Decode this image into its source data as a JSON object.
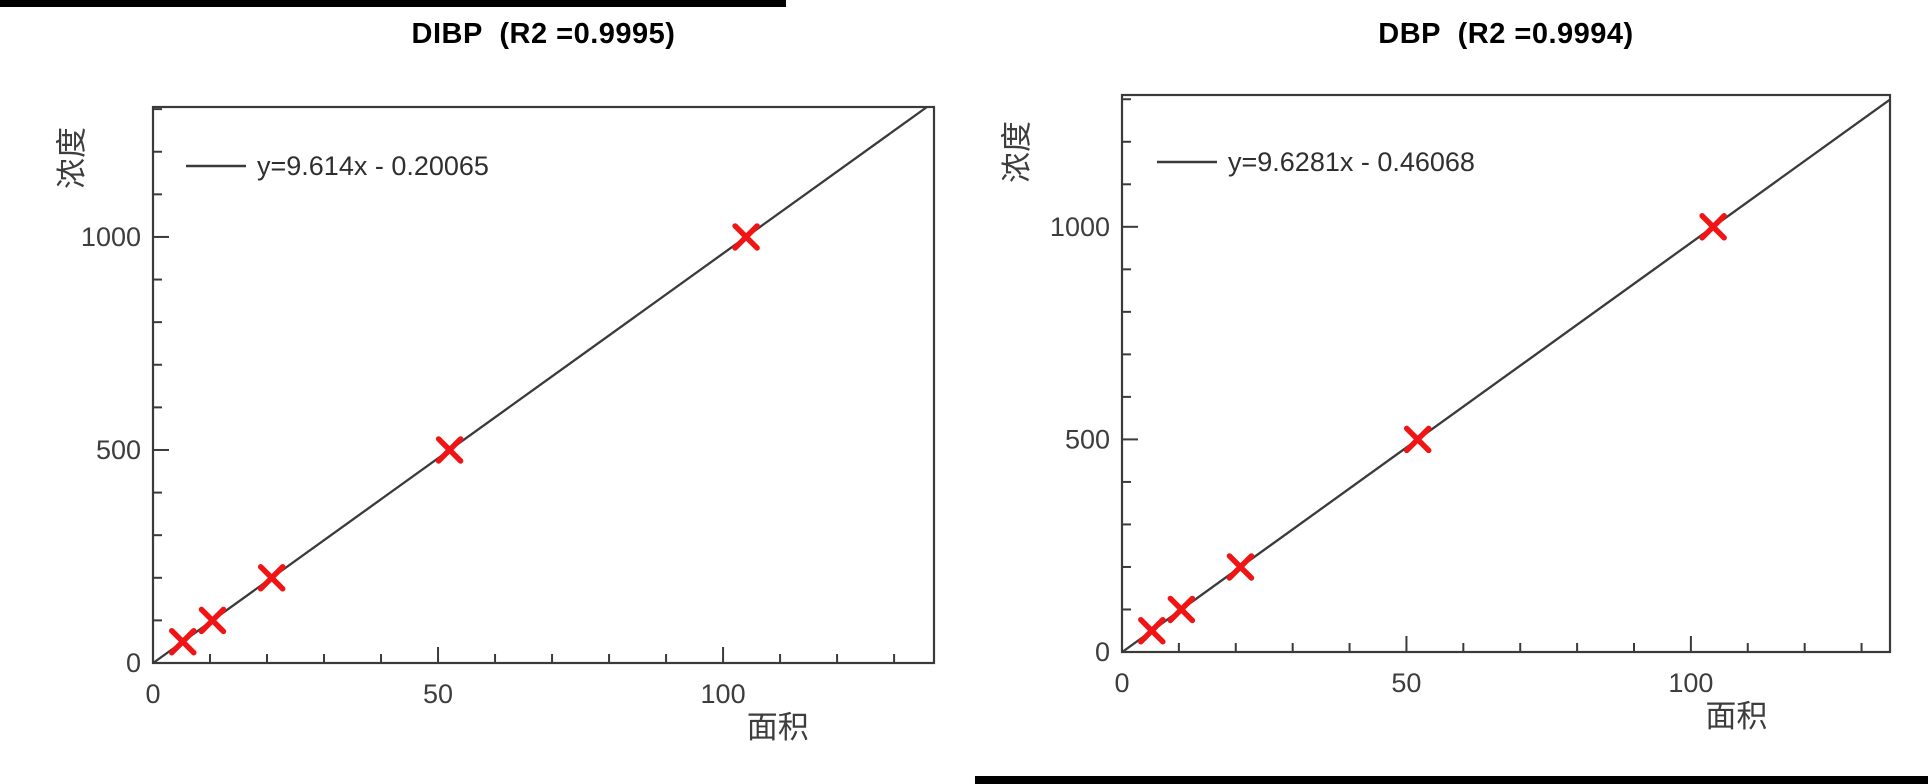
{
  "page": {
    "background": "#ffffff",
    "top_bar_color": "#000000",
    "bottom_bar_color": "#000000"
  },
  "chart_data": [
    {
      "type": "scatter",
      "title": "DIBP  (R2 =0.9995)",
      "r2": 0.9995,
      "legend_equation": "y=9.614x - 0.20065",
      "slope": 9.614,
      "intercept": -0.20065,
      "xlabel": "面积",
      "ylabel": "浓度",
      "points": {
        "x": [
          5.22,
          10.43,
          20.82,
          52.03,
          104.04
        ],
        "y": [
          50,
          100,
          200,
          500,
          1000
        ]
      },
      "xlim": [
        0,
        137
      ],
      "ylim": [
        0,
        1305
      ],
      "xticks": [
        0,
        50,
        100
      ],
      "yticks": [
        0,
        500,
        1000
      ],
      "x_minor_step": 10,
      "y_minor_step": 100,
      "grid": false,
      "legend_position": "top-left",
      "marker": "x",
      "marker_color": "#f11414",
      "line_color": "#3a3a3a",
      "text_color": "#3d3d3d",
      "equation_color": "#2f2f2f"
    },
    {
      "type": "scatter",
      "title": "DBP  (R2 =0.9994)",
      "r2": 0.9994,
      "legend_equation": "y=9.6281x - 0.46068",
      "slope": 9.6281,
      "intercept": -0.46068,
      "xlabel": "面积",
      "ylabel": "浓度",
      "points": {
        "x": [
          5.24,
          10.43,
          20.82,
          51.98,
          103.91
        ],
        "y": [
          50,
          100,
          200,
          500,
          1000
        ]
      },
      "xlim": [
        0,
        135
      ],
      "ylim": [
        0,
        1310
      ],
      "xticks": [
        0,
        50,
        100
      ],
      "yticks": [
        0,
        500,
        1000
      ],
      "x_minor_step": 10,
      "y_minor_step": 100,
      "grid": false,
      "legend_position": "top-left",
      "marker": "x",
      "marker_color": "#f11414",
      "line_color": "#3a3a3a",
      "text_color": "#3d3d3d",
      "equation_color": "#2f2f2f"
    }
  ]
}
